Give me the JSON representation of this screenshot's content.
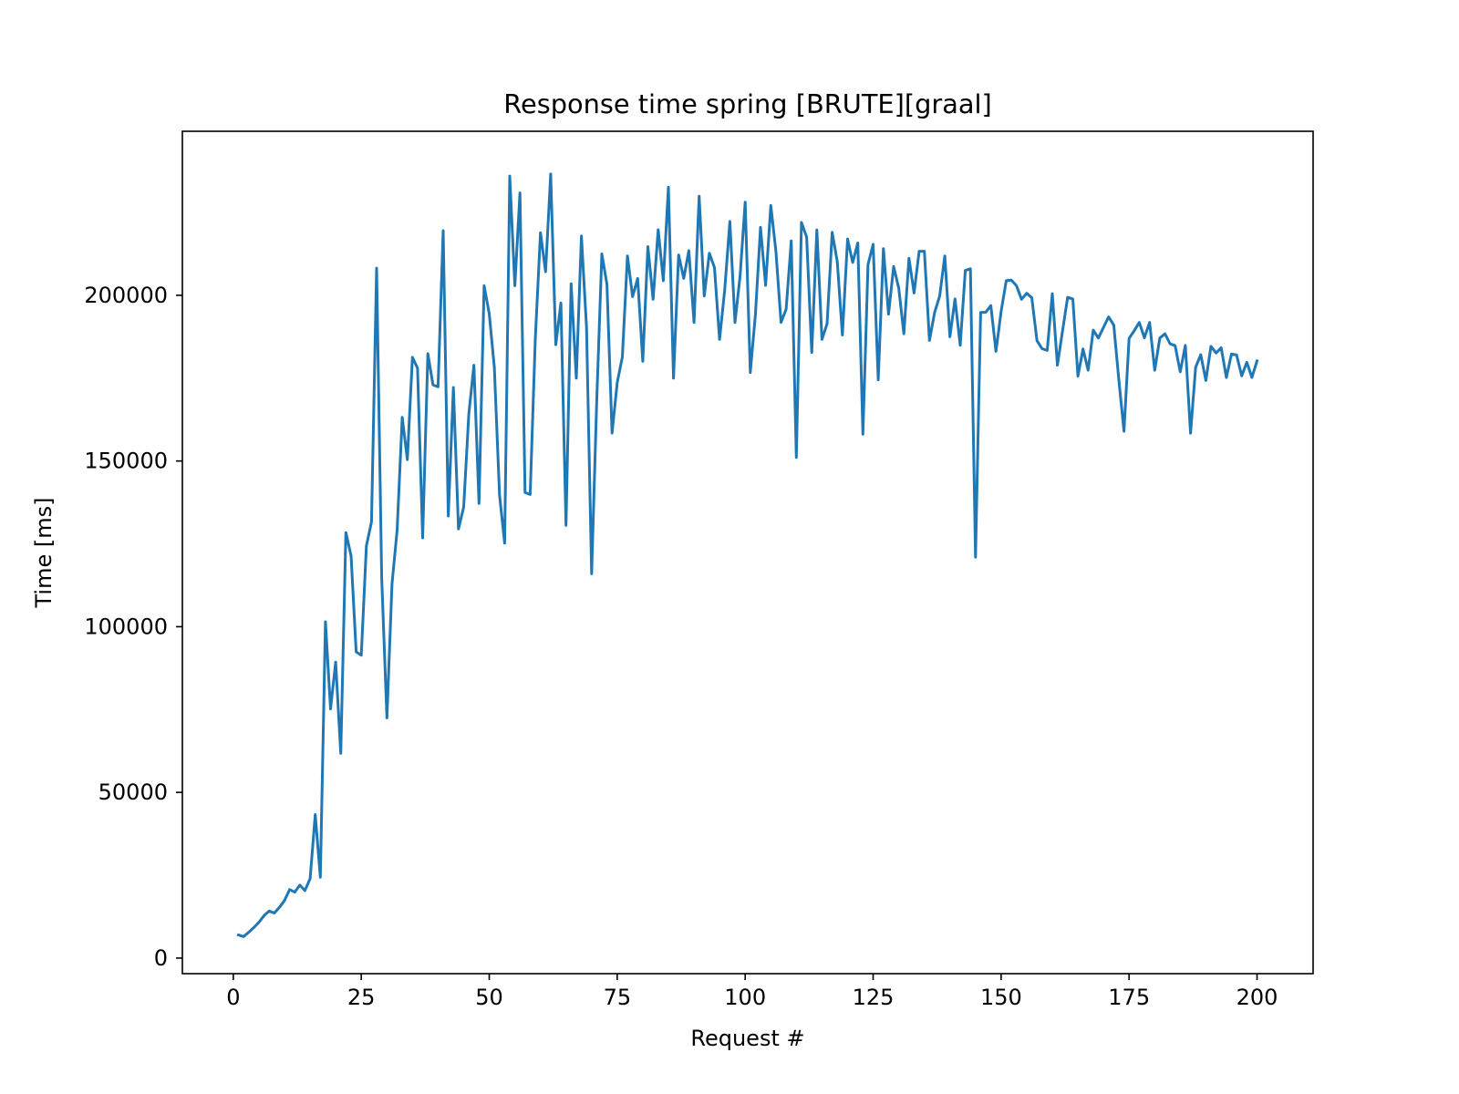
{
  "chart_data": {
    "type": "line",
    "title": "Response time spring [BRUTE][graal]",
    "xlabel": "Request #",
    "ylabel": "Time [ms]",
    "xlim": [
      -9.95,
      210.95
    ],
    "ylim": [
      -4700,
      249500
    ],
    "xticks": [
      0,
      25,
      50,
      75,
      100,
      125,
      150,
      175,
      200
    ],
    "xtick_labels": [
      "0",
      "25",
      "50",
      "75",
      "100",
      "125",
      "150",
      "175",
      "200"
    ],
    "yticks": [
      0,
      50000,
      100000,
      150000,
      200000
    ],
    "ytick_labels": [
      "0",
      "50000",
      "100000",
      "150000",
      "200000"
    ],
    "grid": false,
    "legend": "none",
    "color": "#1f77b4",
    "series": [
      {
        "x": [
          1,
          2,
          3,
          4,
          5,
          6,
          7,
          8,
          9,
          10,
          11,
          12,
          13,
          14,
          15,
          16,
          17,
          18,
          19,
          20,
          21,
          22,
          23,
          24,
          25,
          26,
          27,
          28,
          29,
          30,
          31,
          32,
          33,
          34,
          35,
          36,
          37,
          38,
          39,
          40,
          41,
          42,
          43,
          44,
          45,
          46,
          47,
          48,
          49,
          50,
          51,
          52,
          53,
          54,
          55,
          56,
          57,
          58,
          59,
          60,
          61,
          62,
          63,
          64,
          65,
          66,
          67,
          68,
          69,
          70,
          71,
          72,
          73,
          74,
          75,
          76,
          77,
          78,
          79,
          80,
          81,
          82,
          83,
          84,
          85,
          86,
          87,
          88,
          89,
          90,
          91,
          92,
          93,
          94,
          95,
          96,
          97,
          98,
          99,
          100,
          101,
          102,
          103,
          104,
          105,
          106,
          107,
          108,
          109,
          110,
          111,
          112,
          113,
          114,
          115,
          116,
          117,
          118,
          119,
          120,
          121,
          122,
          123,
          124,
          125,
          126,
          127,
          128,
          129,
          130,
          131,
          132,
          133,
          134,
          135,
          136,
          137,
          138,
          139,
          140,
          141,
          142,
          143,
          144,
          145,
          146,
          147,
          148,
          149,
          150,
          151,
          152,
          153,
          154,
          155,
          156,
          157,
          158,
          159,
          160,
          161,
          162,
          163,
          164,
          165,
          166,
          167,
          168,
          169,
          170,
          171,
          172,
          173,
          174,
          175,
          176,
          177,
          178,
          179,
          180,
          181,
          182,
          183,
          184,
          185,
          186,
          187,
          188,
          189,
          190,
          191,
          192,
          193,
          194,
          195,
          196,
          197,
          198,
          199,
          200
        ],
        "y": [
          7000,
          6500,
          7800,
          9200,
          10800,
          12800,
          14200,
          13600,
          15300,
          17400,
          20700,
          19900,
          22000,
          20400,
          24000,
          43300,
          24400,
          101500,
          75200,
          89300,
          61800,
          128400,
          121400,
          92400,
          91400,
          124400,
          131600,
          208200,
          114600,
          72500,
          112900,
          129100,
          163200,
          150400,
          181300,
          178000,
          126800,
          182400,
          173000,
          172400,
          219500,
          133400,
          172200,
          129500,
          136100,
          164100,
          178900,
          137200,
          202900,
          194500,
          178300,
          139800,
          125200,
          236000,
          202900,
          230900,
          140500,
          139900,
          186700,
          218900,
          207100,
          236600,
          185100,
          197700,
          130600,
          203500,
          175000,
          217900,
          190400,
          116000,
          168200,
          212500,
          203300,
          158400,
          173700,
          181400,
          211900,
          199600,
          205100,
          180100,
          214700,
          198800,
          219800,
          204400,
          232600,
          175000,
          212200,
          205100,
          213500,
          191800,
          229900,
          199800,
          212700,
          208400,
          186700,
          201500,
          222300,
          191800,
          205800,
          228100,
          176700,
          194100,
          220500,
          203000,
          227100,
          213300,
          191800,
          195800,
          216400,
          151100,
          222000,
          217600,
          182800,
          219700,
          186700,
          191400,
          219000,
          210200,
          188000,
          217000,
          209900,
          215800,
          158100,
          209300,
          215400,
          174500,
          214100,
          194300,
          208700,
          202200,
          188400,
          211200,
          200700,
          213300,
          213300,
          186400,
          194800,
          199800,
          211900,
          187500,
          198900,
          184900,
          207500,
          208000,
          121000,
          194800,
          194900,
          196900,
          183100,
          195200,
          204400,
          204600,
          202900,
          198800,
          200600,
          199300,
          186300,
          183900,
          183400,
          200500,
          178900,
          189200,
          199400,
          198900,
          175600,
          183800,
          177400,
          189500,
          187100,
          190300,
          193500,
          191000,
          174400,
          159000,
          187000,
          189300,
          191800,
          187200,
          191800,
          177400,
          187100,
          188400,
          185400,
          184800,
          176900,
          184900,
          158400,
          178300,
          182100,
          174300,
          184600,
          182600,
          184200,
          175200,
          182300,
          182000,
          175700,
          179800,
          175200,
          180200
        ]
      }
    ]
  }
}
